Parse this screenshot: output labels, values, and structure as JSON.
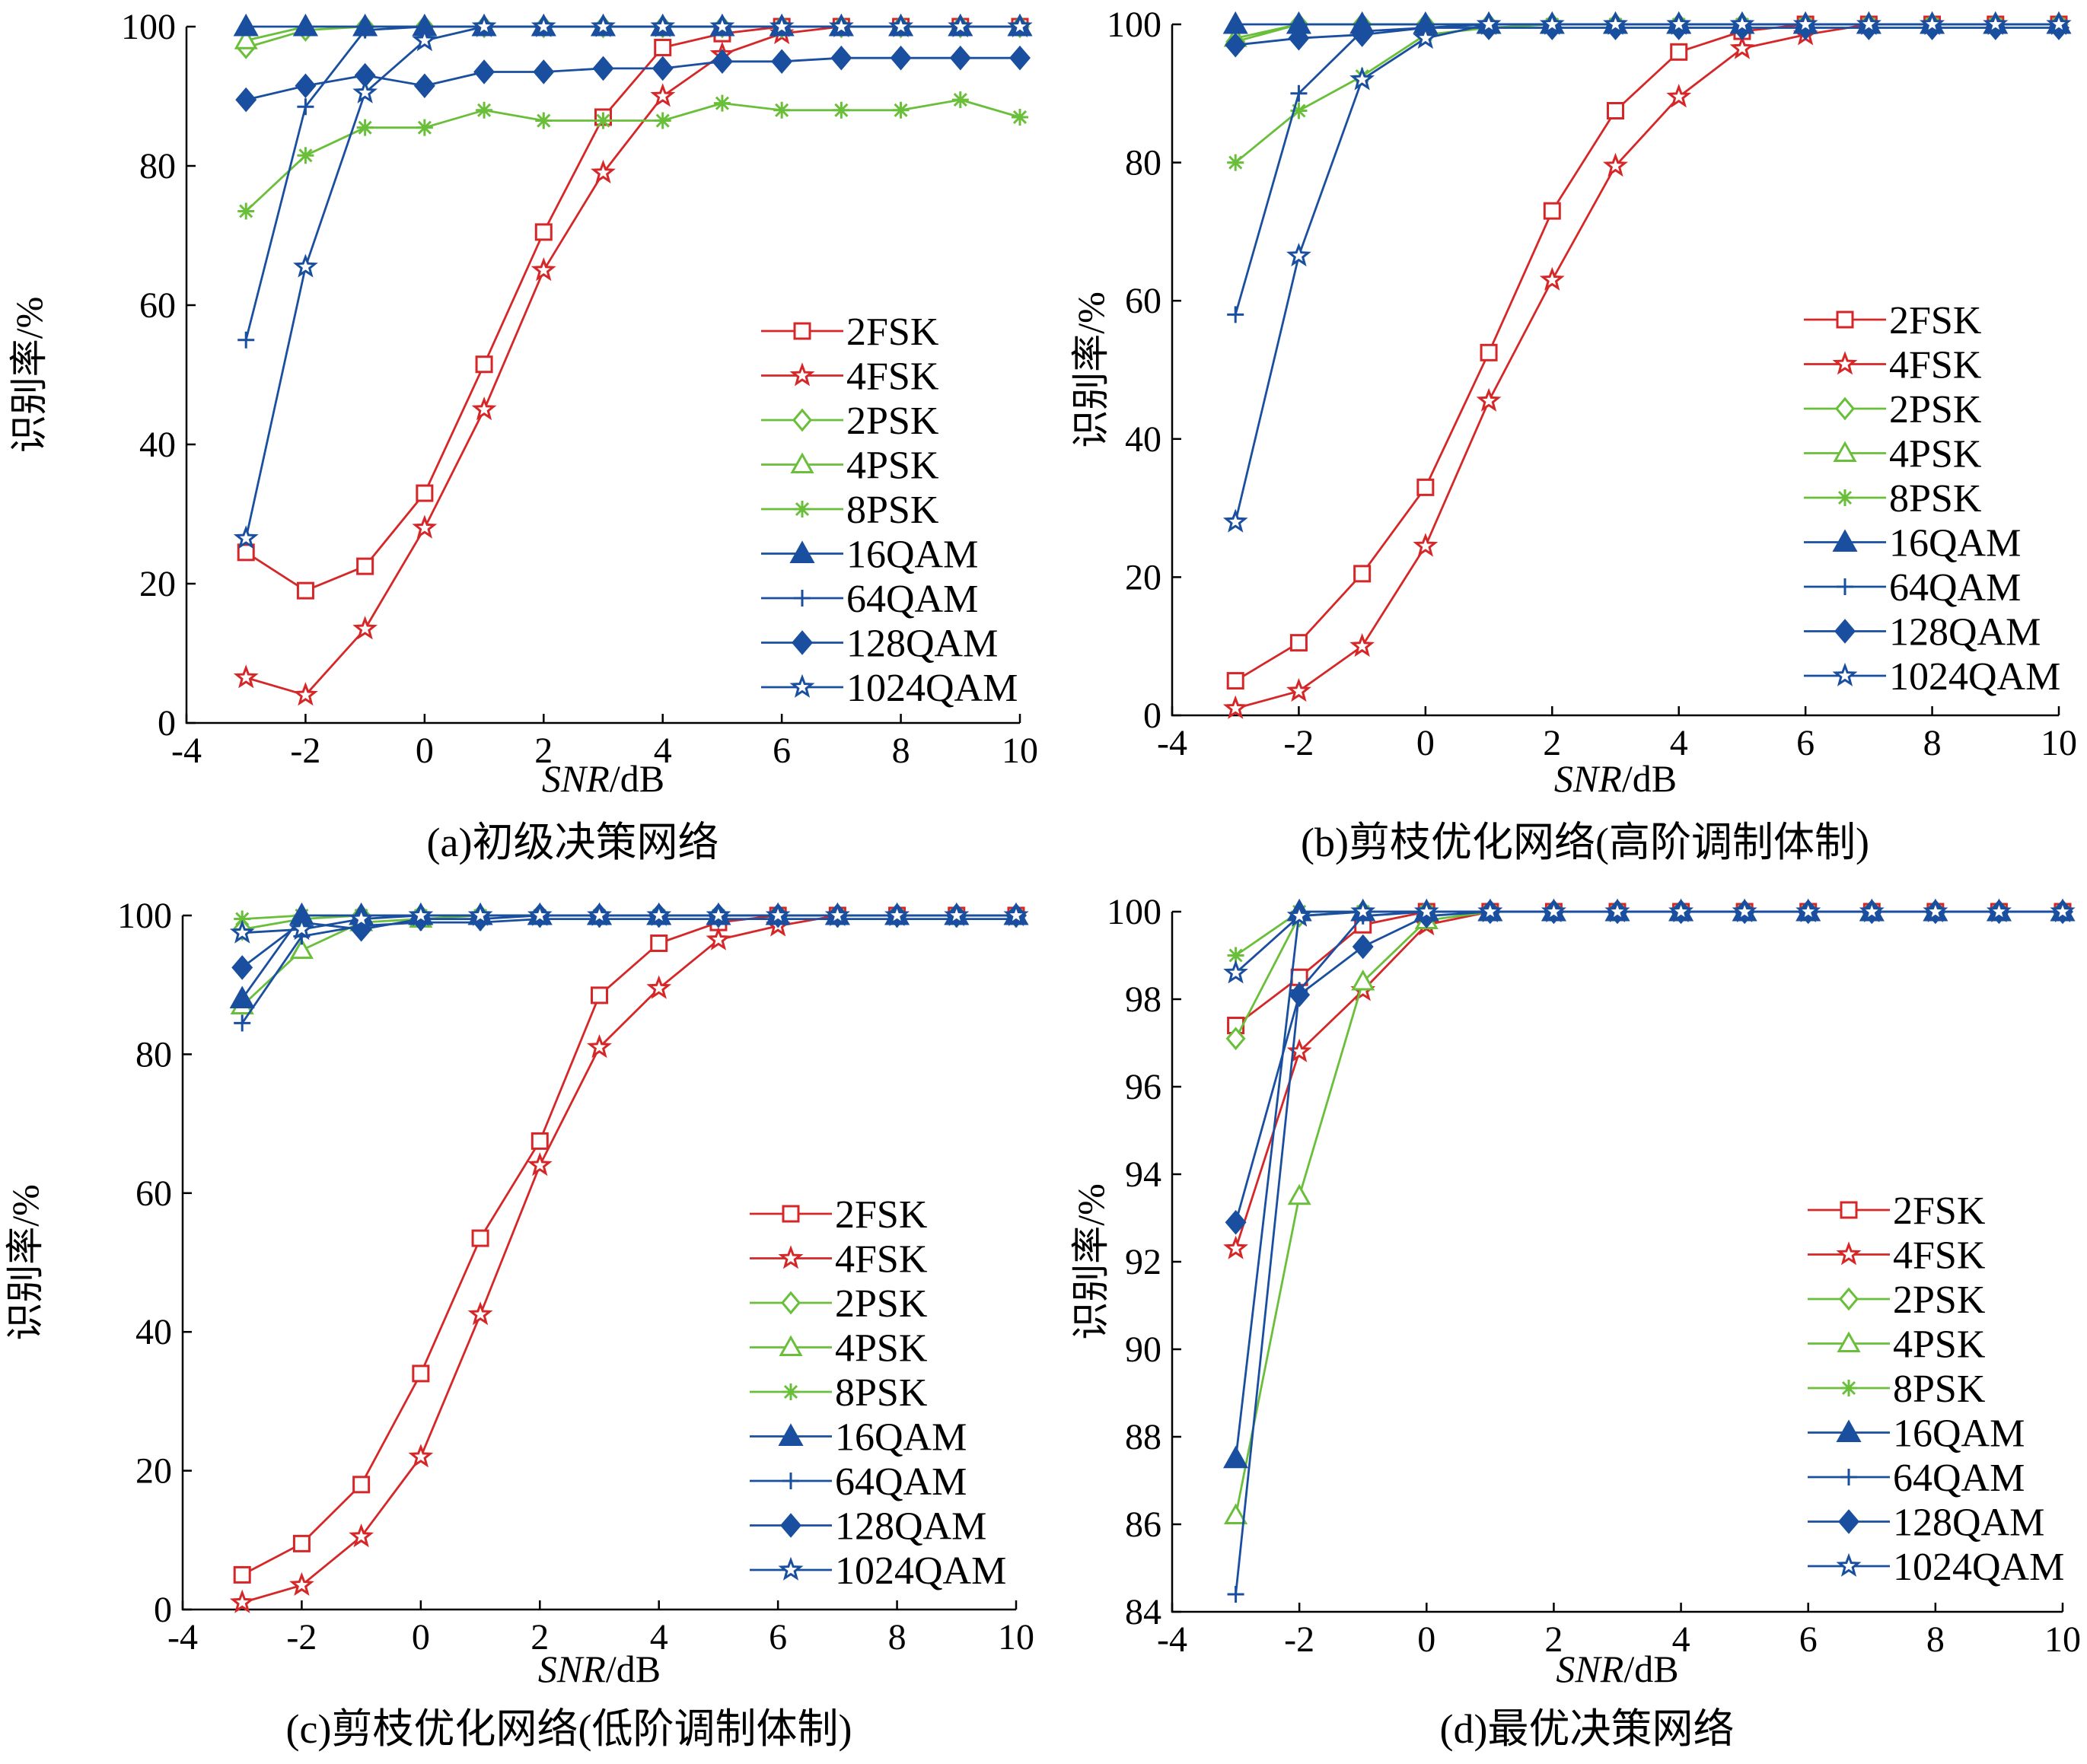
{
  "colors": {
    "red": "#d62728",
    "green": "#6abf3a",
    "blue": "#1a4fa0"
  },
  "panels": [
    {
      "caption": "(a)初级决策网络",
      "ylabel": "识别率/%",
      "xlabel_italic": "SNR",
      "xlabel_unit": "/dB"
    },
    {
      "caption": "(b)剪枝优化网络(高阶调制体制)",
      "ylabel": "识别率/%",
      "xlabel_italic": "SNR",
      "xlabel_unit": "/dB"
    },
    {
      "caption": "(c)剪枝优化网络(低阶调制体制)",
      "ylabel": "识别率/%",
      "xlabel_italic": "SNR",
      "xlabel_unit": "/dB"
    },
    {
      "caption": "(d)最优决策网络",
      "ylabel": "识别率/%",
      "xlabel_italic": "SNR",
      "xlabel_unit": "/dB"
    }
  ],
  "chart_data": [
    {
      "type": "line",
      "xlim": [
        -4,
        10
      ],
      "ylim": [
        0,
        100
      ],
      "xticks": [
        -4,
        -2,
        0,
        2,
        4,
        6,
        8,
        10
      ],
      "yticks": [
        0,
        20,
        40,
        60,
        80,
        100
      ],
      "x": [
        -3,
        -2,
        -1,
        0,
        1,
        2,
        3,
        4,
        5,
        6,
        7,
        8,
        9,
        10
      ],
      "legend_position": "lower-right",
      "series": [
        {
          "name": "2FSK",
          "color": "red",
          "marker": "square",
          "values": [
            24.5,
            19,
            22.5,
            33,
            51.5,
            70.5,
            87,
            97,
            99,
            100,
            100,
            100,
            100,
            100
          ]
        },
        {
          "name": "4FSK",
          "color": "red",
          "marker": "star",
          "values": [
            6.5,
            4,
            13.5,
            28,
            45,
            65,
            79,
            90,
            96,
            99,
            100,
            100,
            100,
            100
          ]
        },
        {
          "name": "2PSK",
          "color": "green",
          "marker": "diamond",
          "values": [
            97,
            99.5,
            100,
            100,
            100,
            100,
            100,
            100,
            100,
            100,
            100,
            100,
            100,
            100
          ]
        },
        {
          "name": "4PSK",
          "color": "green",
          "marker": "triangle-open",
          "values": [
            98,
            100,
            100,
            100,
            100,
            100,
            100,
            100,
            100,
            100,
            100,
            100,
            100,
            100
          ]
        },
        {
          "name": "8PSK",
          "color": "green",
          "marker": "asterisk",
          "values": [
            73.5,
            81.5,
            85.5,
            85.5,
            88,
            86.5,
            86.5,
            86.5,
            89,
            88,
            88,
            88,
            89.5,
            87
          ]
        },
        {
          "name": "16QAM",
          "color": "blue",
          "marker": "triangle-filled",
          "values": [
            100,
            100,
            100,
            100,
            100,
            100,
            100,
            100,
            100,
            100,
            100,
            100,
            100,
            100
          ]
        },
        {
          "name": "64QAM",
          "color": "blue",
          "marker": "plus",
          "values": [
            55,
            88.5,
            99.5,
            100,
            100,
            100,
            100,
            100,
            100,
            100,
            100,
            100,
            100,
            100
          ]
        },
        {
          "name": "128QAM",
          "color": "blue",
          "marker": "diamond-filled",
          "values": [
            89.5,
            91.5,
            93,
            91.5,
            93.5,
            93.5,
            94,
            94,
            95,
            95,
            95.5,
            95.5,
            95.5,
            95.5
          ]
        },
        {
          "name": "1024QAM",
          "color": "blue",
          "marker": "star",
          "values": [
            26.5,
            65.5,
            90.5,
            98,
            100,
            100,
            100,
            100,
            100,
            100,
            100,
            100,
            100,
            100
          ]
        }
      ]
    },
    {
      "type": "line",
      "xlim": [
        -4,
        10
      ],
      "ylim": [
        0,
        100
      ],
      "xticks": [
        -4,
        -2,
        0,
        2,
        4,
        6,
        8,
        10
      ],
      "yticks": [
        0,
        20,
        40,
        60,
        80,
        100
      ],
      "x": [
        -3,
        -2,
        -1,
        0,
        1,
        2,
        3,
        4,
        5,
        6,
        7,
        8,
        9,
        10
      ],
      "legend_position": "lower-right",
      "series": [
        {
          "name": "2FSK",
          "color": "red",
          "marker": "square",
          "values": [
            5,
            10.5,
            20.5,
            33,
            52.5,
            73,
            87.5,
            96,
            99,
            100,
            100,
            100,
            100,
            100
          ]
        },
        {
          "name": "4FSK",
          "color": "red",
          "marker": "star",
          "values": [
            1,
            3.5,
            10,
            24.5,
            45.5,
            63,
            79.5,
            89.5,
            96.5,
            98.5,
            100,
            100,
            100,
            100
          ]
        },
        {
          "name": "2PSK",
          "color": "green",
          "marker": "diamond",
          "values": [
            97.5,
            100,
            100,
            100,
            100,
            100,
            100,
            100,
            100,
            100,
            100,
            100,
            100,
            100
          ]
        },
        {
          "name": "4PSK",
          "color": "green",
          "marker": "triangle-open",
          "values": [
            98,
            100,
            100,
            100,
            100,
            100,
            100,
            100,
            100,
            100,
            100,
            100,
            100,
            100
          ]
        },
        {
          "name": "8PSK",
          "color": "green",
          "marker": "asterisk",
          "values": [
            80,
            87.5,
            92.5,
            98.5,
            99.5,
            100,
            100,
            100,
            100,
            100,
            100,
            100,
            100,
            100
          ]
        },
        {
          "name": "16QAM",
          "color": "blue",
          "marker": "triangle-filled",
          "values": [
            100,
            100,
            100,
            100,
            100,
            100,
            100,
            100,
            100,
            100,
            100,
            100,
            100,
            100
          ]
        },
        {
          "name": "64QAM",
          "color": "blue",
          "marker": "plus",
          "values": [
            58,
            90,
            99,
            99.5,
            100,
            100,
            100,
            100,
            100,
            100,
            100,
            100,
            100,
            100
          ]
        },
        {
          "name": "128QAM",
          "color": "blue",
          "marker": "diamond-filled",
          "values": [
            97,
            98,
            98.5,
            99.5,
            99.5,
            99.5,
            99.5,
            99.5,
            99.5,
            99.5,
            99.5,
            99.5,
            99.5,
            99.5
          ]
        },
        {
          "name": "1024QAM",
          "color": "blue",
          "marker": "star",
          "values": [
            28,
            66.5,
            92,
            98,
            100,
            100,
            100,
            100,
            100,
            100,
            100,
            100,
            100,
            100
          ]
        }
      ]
    },
    {
      "type": "line",
      "xlim": [
        -4,
        10
      ],
      "ylim": [
        0,
        100
      ],
      "xticks": [
        -4,
        -2,
        0,
        2,
        4,
        6,
        8,
        10
      ],
      "yticks": [
        0,
        20,
        40,
        60,
        80,
        100
      ],
      "x": [
        -3,
        -2,
        -1,
        0,
        1,
        2,
        3,
        4,
        5,
        6,
        7,
        8,
        9,
        10
      ],
      "legend_position": "lower-right",
      "series": [
        {
          "name": "2FSK",
          "color": "red",
          "marker": "square",
          "values": [
            5,
            9.5,
            18,
            34,
            53.5,
            67.5,
            88.5,
            96,
            99,
            100,
            100,
            100,
            100,
            100
          ]
        },
        {
          "name": "4FSK",
          "color": "red",
          "marker": "star",
          "values": [
            1,
            3.5,
            10.5,
            22,
            42.5,
            64,
            81,
            89.5,
            96.5,
            98.5,
            100,
            100,
            100,
            100
          ]
        },
        {
          "name": "2PSK",
          "color": "green",
          "marker": "diamond",
          "values": [
            98,
            99.5,
            100,
            100,
            100,
            100,
            100,
            100,
            100,
            100,
            100,
            100,
            100,
            100
          ]
        },
        {
          "name": "4PSK",
          "color": "green",
          "marker": "triangle-open",
          "values": [
            87,
            95,
            99,
            99.5,
            100,
            100,
            100,
            100,
            100,
            100,
            100,
            100,
            100,
            100
          ]
        },
        {
          "name": "8PSK",
          "color": "green",
          "marker": "asterisk",
          "values": [
            99.5,
            100,
            100,
            100,
            100,
            100,
            100,
            100,
            100,
            100,
            100,
            100,
            100,
            100
          ]
        },
        {
          "name": "16QAM",
          "color": "blue",
          "marker": "triangle-filled",
          "values": [
            88,
            100,
            100,
            100,
            100,
            100,
            100,
            100,
            100,
            100,
            100,
            100,
            100,
            100
          ]
        },
        {
          "name": "64QAM",
          "color": "blue",
          "marker": "plus",
          "values": [
            84.5,
            97,
            98.5,
            99,
            99,
            99.5,
            99.5,
            99.5,
            99.5,
            99.5,
            99.5,
            99.5,
            99.5,
            99.5
          ]
        },
        {
          "name": "128QAM",
          "color": "blue",
          "marker": "diamond-filled",
          "values": [
            92.5,
            99,
            98,
            99.5,
            99.5,
            100,
            100,
            100,
            100,
            100,
            100,
            100,
            100,
            100
          ]
        },
        {
          "name": "1024QAM",
          "color": "blue",
          "marker": "star",
          "values": [
            97.5,
            98,
            99.5,
            100,
            100,
            100,
            100,
            100,
            100,
            100,
            100,
            100,
            100,
            100
          ]
        }
      ]
    },
    {
      "type": "line",
      "xlim": [
        -4,
        10
      ],
      "ylim": [
        84,
        100
      ],
      "xticks": [
        -4,
        -2,
        0,
        2,
        4,
        6,
        8,
        10
      ],
      "yticks": [
        84,
        86,
        88,
        90,
        92,
        94,
        96,
        98,
        100
      ],
      "x": [
        -3,
        -2,
        -1,
        0,
        1,
        2,
        3,
        4,
        5,
        6,
        7,
        8,
        9,
        10
      ],
      "legend_position": "lower-right",
      "series": [
        {
          "name": "2FSK",
          "color": "red",
          "marker": "square",
          "values": [
            97.4,
            98.5,
            99.7,
            100,
            100,
            100,
            100,
            100,
            100,
            100,
            100,
            100,
            100,
            100
          ]
        },
        {
          "name": "4FSK",
          "color": "red",
          "marker": "star",
          "values": [
            92.3,
            96.8,
            98.2,
            99.7,
            100,
            100,
            100,
            100,
            100,
            100,
            100,
            100,
            100,
            100
          ]
        },
        {
          "name": "2PSK",
          "color": "green",
          "marker": "diamond",
          "values": [
            97.1,
            99.9,
            100,
            100,
            100,
            100,
            100,
            100,
            100,
            100,
            100,
            100,
            100,
            100
          ]
        },
        {
          "name": "4PSK",
          "color": "green",
          "marker": "triangle-open",
          "values": [
            86.2,
            93.5,
            98.4,
            99.8,
            100,
            100,
            100,
            100,
            100,
            100,
            100,
            100,
            100,
            100
          ]
        },
        {
          "name": "8PSK",
          "color": "green",
          "marker": "asterisk",
          "values": [
            99,
            100,
            100,
            100,
            100,
            100,
            100,
            100,
            100,
            100,
            100,
            100,
            100,
            100
          ]
        },
        {
          "name": "16QAM",
          "color": "blue",
          "marker": "triangle-filled",
          "values": [
            87.5,
            100,
            100,
            100,
            100,
            100,
            100,
            100,
            100,
            100,
            100,
            100,
            100,
            100
          ]
        },
        {
          "name": "64QAM",
          "color": "blue",
          "marker": "plus",
          "values": [
            84.4,
            98.2,
            99.9,
            100,
            100,
            100,
            100,
            100,
            100,
            100,
            100,
            100,
            100,
            100
          ]
        },
        {
          "name": "128QAM",
          "color": "blue",
          "marker": "diamond-filled",
          "values": [
            92.9,
            98.1,
            99.2,
            99.9,
            100,
            100,
            100,
            100,
            100,
            100,
            100,
            100,
            100,
            100
          ]
        },
        {
          "name": "1024QAM",
          "color": "blue",
          "marker": "star",
          "values": [
            98.6,
            99.9,
            100,
            100,
            100,
            100,
            100,
            100,
            100,
            100,
            100,
            100,
            100,
            100
          ]
        }
      ]
    }
  ]
}
